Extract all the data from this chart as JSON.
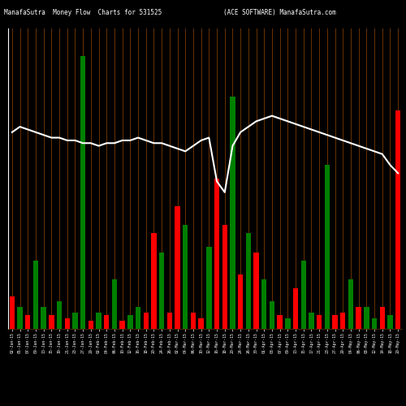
{
  "title_left": "ManafaSutra  Money Flow  Charts for 531525",
  "title_right": "(ACE SOFTWARE) ManafaSutra.com",
  "bg_color": "#000000",
  "bar_colors": [
    "red",
    "green",
    "red",
    "green",
    "green",
    "red",
    "green",
    "red",
    "green",
    "green",
    "red",
    "green",
    "red",
    "green",
    "red",
    "green",
    "green",
    "red",
    "red",
    "green",
    "red",
    "red",
    "green",
    "red",
    "red",
    "green",
    "red",
    "red",
    "green",
    "red",
    "green",
    "red",
    "green",
    "green",
    "red",
    "green",
    "red",
    "green",
    "green",
    "red",
    "green",
    "red",
    "red",
    "green",
    "red",
    "green",
    "green",
    "red",
    "green",
    "red"
  ],
  "bar_heights": [
    12,
    8,
    5,
    25,
    8,
    5,
    10,
    4,
    6,
    100,
    3,
    6,
    5,
    18,
    3,
    5,
    8,
    6,
    35,
    28,
    6,
    45,
    38,
    6,
    4,
    30,
    55,
    38,
    85,
    20,
    35,
    28,
    18,
    10,
    5,
    4,
    15,
    25,
    6,
    5,
    60,
    5,
    6,
    18,
    8,
    8,
    4,
    8,
    5,
    80
  ],
  "line_values": [
    72,
    74,
    73,
    72,
    71,
    70,
    70,
    69,
    69,
    68,
    68,
    67,
    68,
    68,
    69,
    69,
    70,
    69,
    68,
    68,
    67,
    66,
    65,
    67,
    69,
    70,
    54,
    50,
    67,
    72,
    74,
    76,
    77,
    78,
    77,
    76,
    75,
    74,
    73,
    72,
    71,
    70,
    69,
    68,
    67,
    66,
    65,
    64,
    60,
    57
  ],
  "grid_color": "#6B3200",
  "line_color": "#ffffff",
  "tick_labels": [
    "02-Jan-15",
    "05-Jan-15",
    "07-Jan-15",
    "09-Jan-15",
    "13-Jan-15",
    "15-Jan-15",
    "19-Jan-15",
    "21-Jan-15",
    "23-Jan-15",
    "27-Jan-15",
    "29-Jan-15",
    "02-Feb-15",
    "04-Feb-15",
    "06-Feb-15",
    "10-Feb-15",
    "12-Feb-15",
    "16-Feb-15",
    "18-Feb-15",
    "20-Feb-15",
    "24-Feb-15",
    "26-Feb-15",
    "02-Mar-15",
    "04-Mar-15",
    "06-Mar-15",
    "10-Mar-15",
    "12-Mar-15",
    "16-Mar-15",
    "18-Mar-15",
    "20-Mar-15",
    "24-Mar-15",
    "26-Mar-15",
    "30-Mar-15",
    "01-Apr-15",
    "03-Apr-15",
    "07-Apr-15",
    "09-Apr-15",
    "13-Apr-15",
    "15-Apr-15",
    "17-Apr-15",
    "21-Apr-15",
    "23-Apr-15",
    "27-Apr-15",
    "29-Apr-15",
    "04-May-15",
    "06-May-15",
    "08-May-15",
    "12-May-15",
    "14-May-15",
    "18-May-15",
    "20-May-15"
  ],
  "n_bars": 50,
  "ylim_max": 110,
  "title_fontsize": 5.5
}
